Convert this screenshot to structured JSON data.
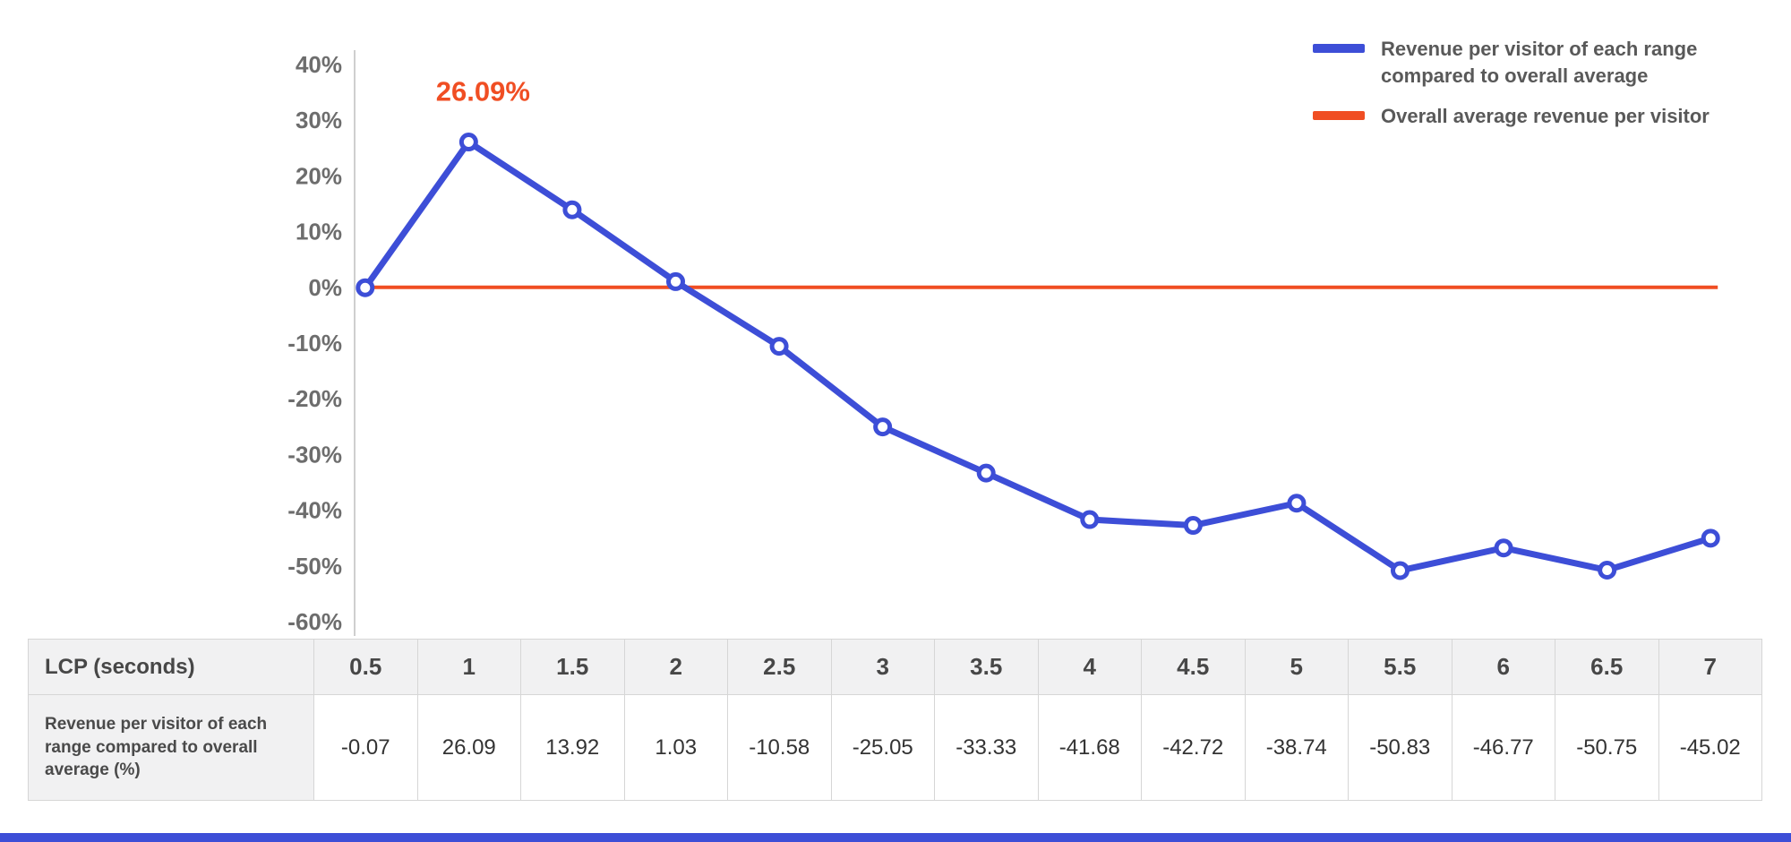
{
  "page": {
    "background": "#ffffff",
    "accent_bar_color": "#3d4ed7"
  },
  "legend": {
    "items": [
      {
        "label": "Revenue per visitor of each range compared to overall average",
        "color": "#3d4ed7"
      },
      {
        "label": "Overall average revenue per visitor",
        "color": "#f04e23"
      }
    ]
  },
  "chart_data": {
    "type": "line",
    "title": "",
    "xlabel": "LCP (seconds)",
    "ylabel": "",
    "x": [
      0.5,
      1,
      1.5,
      2,
      2.5,
      3,
      3.5,
      4,
      4.5,
      5,
      5.5,
      6,
      6.5,
      7
    ],
    "ylim": [
      -60,
      40
    ],
    "ytick_step": 10,
    "ytick_labels": [
      "40%",
      "30%",
      "20%",
      "10%",
      "0%",
      "-10%",
      "-20%",
      "-30%",
      "-40%",
      "-50%",
      "-60%"
    ],
    "grid": false,
    "legend_position": "top-right",
    "series": [
      {
        "name": "Revenue per visitor of each range compared to overall average",
        "color": "#3d4ed7",
        "marker": "open-circle",
        "values": [
          -0.07,
          26.09,
          13.92,
          1.03,
          -10.58,
          -25.05,
          -33.33,
          -41.68,
          -42.72,
          -38.74,
          -50.83,
          -46.77,
          -50.75,
          -45.02
        ]
      },
      {
        "name": "Overall average revenue per visitor",
        "color": "#f04e23",
        "marker": "none",
        "values": [
          0,
          0,
          0,
          0,
          0,
          0,
          0,
          0,
          0,
          0,
          0,
          0,
          0,
          0
        ]
      }
    ],
    "annotation": {
      "text": "26.09%",
      "target_index": 1,
      "color": "#f04e23"
    }
  },
  "table": {
    "row1_label": "LCP (seconds)",
    "row2_label": "Revenue per visitor of each range compared to overall average (%)",
    "lcp_values": [
      "0.5",
      "1",
      "1.5",
      "2",
      "2.5",
      "3",
      "3.5",
      "4",
      "4.5",
      "5",
      "5.5",
      "6",
      "6.5",
      "7"
    ],
    "revenue_values": [
      "-0.07",
      "26.09",
      "13.92",
      "1.03",
      "-10.58",
      "-25.05",
      "-33.33",
      "-41.68",
      "-42.72",
      "-38.74",
      "-50.83",
      "-46.77",
      "-50.75",
      "-45.02"
    ]
  }
}
